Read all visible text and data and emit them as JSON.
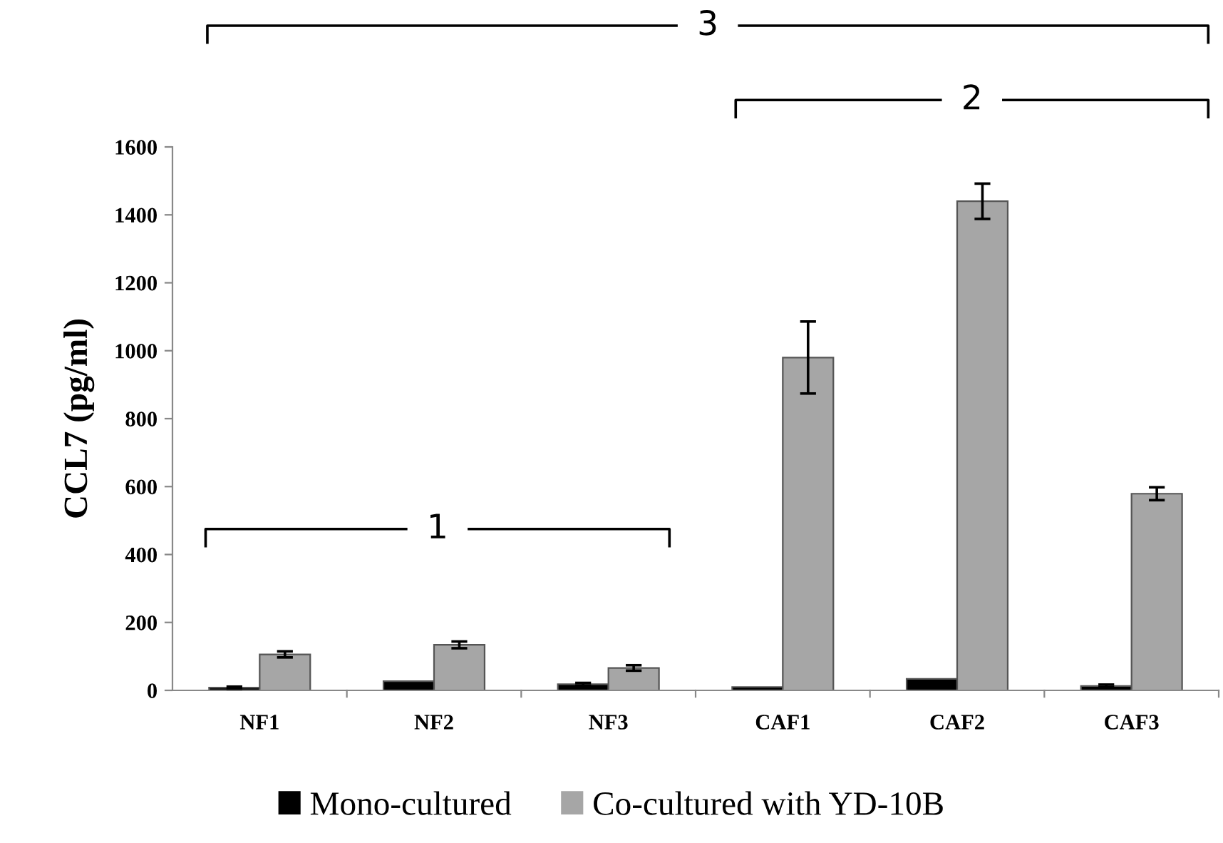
{
  "chart_data": {
    "type": "bar",
    "ylabel": "CCL7 (pg/ml)",
    "categories": [
      "NF1",
      "NF2",
      "NF3",
      "CAF1",
      "CAF2",
      "CAF3"
    ],
    "series": [
      {
        "name": "Mono-cultured",
        "color": "#000000",
        "values": [
          8,
          27,
          18,
          10,
          34,
          13
        ],
        "errors": [
          3,
          null,
          4,
          null,
          null,
          4
        ]
      },
      {
        "name": "Co-cultured with YD-10B",
        "color": "#a6a6a6",
        "values": [
          106,
          134,
          66,
          980,
          1440,
          579
        ],
        "errors": [
          9,
          10,
          8,
          106,
          52,
          19
        ]
      }
    ],
    "ylim": [
      0,
      1600
    ],
    "yticks": [
      0,
      200,
      400,
      600,
      800,
      1000,
      1200,
      1400,
      1600
    ],
    "grid": false,
    "legend": "bottom",
    "annotations": [
      "3",
      "2",
      "1"
    ]
  }
}
